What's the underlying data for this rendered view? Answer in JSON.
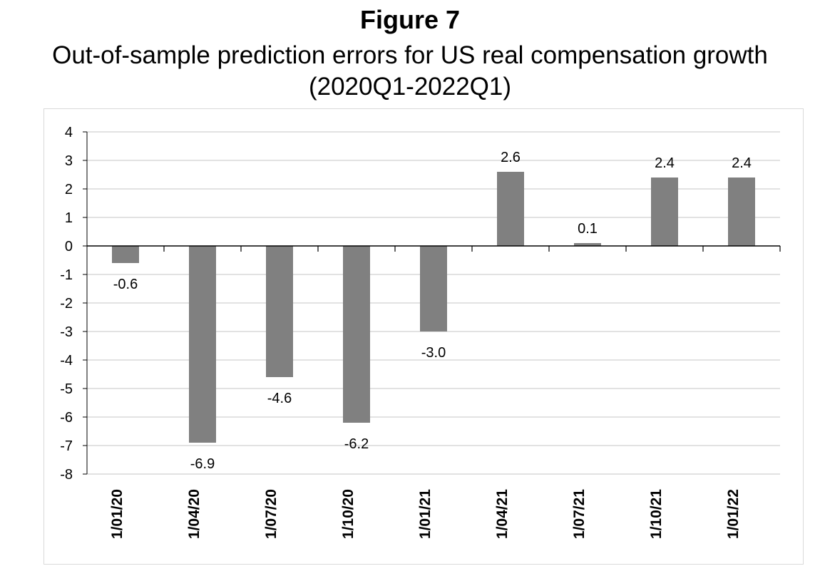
{
  "figure": {
    "label": "Figure 7",
    "title_line1": "Out-of-sample prediction errors for US real compensation growth",
    "title_line2": "(2020Q1-2022Q1)"
  },
  "chart_data": {
    "type": "bar",
    "title": "Out-of-sample prediction errors for US real compensation growth (2020Q1-2022Q1)",
    "categories": [
      "1/01/20",
      "1/04/20",
      "1/07/20",
      "1/10/20",
      "1/01/21",
      "1/04/21",
      "1/07/21",
      "1/10/21",
      "1/01/22"
    ],
    "values": [
      -0.6,
      -6.9,
      -4.6,
      -6.2,
      -3.0,
      2.6,
      0.1,
      2.4,
      2.4
    ],
    "data_labels": [
      "-0.6",
      "-6.9",
      "-4.6",
      "-6.2",
      "-3.0",
      "2.6",
      "0.1",
      "2.4",
      "2.4"
    ],
    "xlabel": "",
    "ylabel": "",
    "ylim": [
      -8,
      4
    ],
    "yticks": [
      4,
      3,
      2,
      1,
      0,
      -1,
      -2,
      -3,
      -4,
      -5,
      -6,
      -7,
      -8
    ],
    "grid": true,
    "legend": "none",
    "bar_color": "#808080",
    "grid_color": "#d9d9d9",
    "axis_color": "#000000"
  }
}
